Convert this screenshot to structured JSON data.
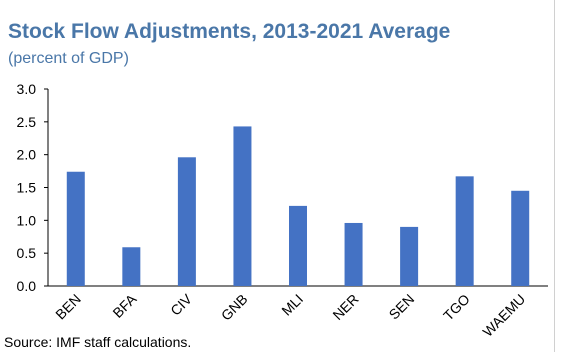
{
  "chart_data": {
    "type": "bar",
    "title": "Stock Flow Adjustments, 2013-2021 Average",
    "subtitle": "(percent of GDP)",
    "categories": [
      "BEN",
      "BFA",
      "CIV",
      "GNB",
      "MLI",
      "NER",
      "SEN",
      "TGO",
      "WAEMU"
    ],
    "values": [
      1.74,
      0.59,
      1.96,
      2.43,
      1.22,
      0.96,
      0.9,
      1.67,
      1.45
    ],
    "ylim": [
      0,
      3.0
    ],
    "yticks": [
      "0.0",
      "0.5",
      "1.0",
      "1.5",
      "2.0",
      "2.5",
      "3.0"
    ],
    "xlabel": "",
    "ylabel": "",
    "grid": false,
    "bar_color": "#4472c4",
    "title_color": "#4a77a8",
    "source": "Source: IMF staff calculations."
  }
}
